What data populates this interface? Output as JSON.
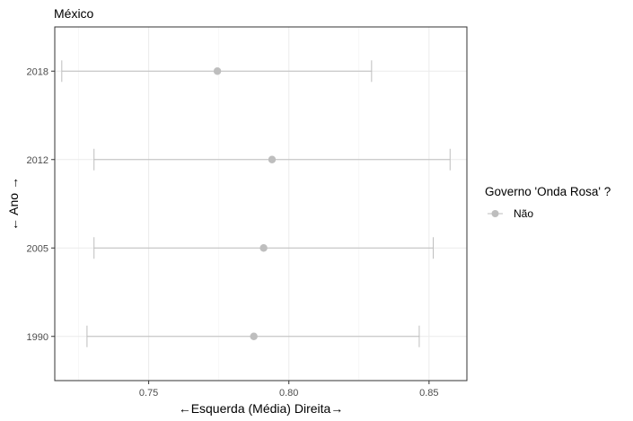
{
  "chart_data": {
    "type": "scatter",
    "title": "México",
    "xlabel": "←Esquerda (Média) Direita→",
    "ylabel": "← Ano →",
    "xlim": [
      0.7165,
      0.8635
    ],
    "x_ticks": [
      0.75,
      0.8,
      0.85
    ],
    "x_tick_labels": [
      "0.75",
      "0.80",
      "0.85"
    ],
    "categories": [
      "1990",
      "2005",
      "2012",
      "2018"
    ],
    "grid": true,
    "legend_position": "right",
    "legend_title": "Governo 'Onda Rosa' ?",
    "series": [
      {
        "name": "Não",
        "color": "#bebebe",
        "points": [
          {
            "year": "1990",
            "mean": 0.7875,
            "low": 0.728,
            "high": 0.8465
          },
          {
            "year": "2005",
            "mean": 0.791,
            "low": 0.7305,
            "high": 0.8515
          },
          {
            "year": "2012",
            "mean": 0.794,
            "low": 0.7305,
            "high": 0.8575
          },
          {
            "year": "2018",
            "mean": 0.7745,
            "low": 0.719,
            "high": 0.8295
          }
        ]
      }
    ]
  }
}
